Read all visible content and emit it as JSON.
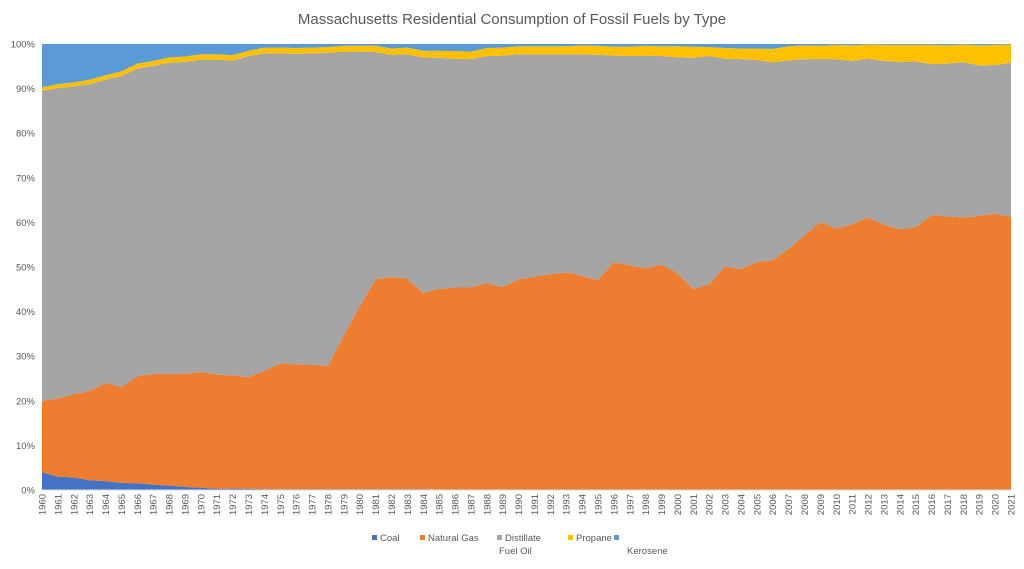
{
  "chart_data": {
    "type": "area",
    "stacked": "percent",
    "title": "Massachusetts Residential Consumption of Fossil Fuels by Type",
    "xlabel": "",
    "ylabel": "",
    "ylim": [
      0,
      100
    ],
    "y_ticks": [
      "0%",
      "10%",
      "20%",
      "30%",
      "40%",
      "50%",
      "60%",
      "70%",
      "80%",
      "90%",
      "100%"
    ],
    "grid": false,
    "legend": "bottom",
    "x": [
      1960,
      1961,
      1962,
      1963,
      1964,
      1965,
      1966,
      1967,
      1968,
      1969,
      1970,
      1971,
      1972,
      1973,
      1974,
      1975,
      1976,
      1977,
      1978,
      1979,
      1980,
      1981,
      1982,
      1983,
      1984,
      1985,
      1986,
      1987,
      1988,
      1989,
      1990,
      1991,
      1992,
      1993,
      1994,
      1995,
      1996,
      1997,
      1998,
      1999,
      2000,
      2001,
      2002,
      2003,
      2004,
      2005,
      2006,
      2007,
      2008,
      2009,
      2010,
      2011,
      2012,
      2013,
      2014,
      2015,
      2016,
      2017,
      2018,
      2019,
      2020,
      2021
    ],
    "series": [
      {
        "name": "Coal",
        "color": "#4472c4",
        "values": [
          4,
          3,
          2.8,
          2.2,
          2,
          1.6,
          1.5,
          1.2,
          1,
          0.7,
          0.5,
          0.3,
          0.3,
          0.3,
          0.2,
          0.2,
          0.2,
          0.2,
          0.2,
          0.2,
          0.2,
          0.2,
          0.2,
          0.2,
          0.2,
          0.1,
          0.1,
          0.1,
          0.1,
          0.1,
          0.1,
          0.1,
          0.1,
          0.1,
          0.1,
          0.1,
          0.1,
          0.1,
          0.1,
          0.1,
          0.1,
          0.1,
          0.1,
          0.1,
          0.1,
          0.1,
          0.1,
          0.1,
          0.1,
          0.1,
          0.1,
          0.1,
          0.1,
          0.1,
          0.1,
          0.1,
          0.1,
          0.1,
          0.1,
          0.1,
          0.1,
          0.1
        ]
      },
      {
        "name": "Natural Gas",
        "color": "#ed7d31",
        "values": [
          16,
          17.5,
          18.7,
          20,
          22,
          21.5,
          24,
          24.8,
          25,
          25.3,
          26,
          25.6,
          25.4,
          25,
          26.5,
          28.2,
          28,
          27.9,
          27.6,
          34.5,
          41,
          47,
          47.5,
          47.2,
          44,
          45,
          45.3,
          45.3,
          46.3,
          45.4,
          47.1,
          47.7,
          48.3,
          48.7,
          47.9,
          47,
          51,
          50.3,
          49.6,
          50.5,
          48.5,
          45,
          46,
          50,
          49.5,
          51,
          51.4,
          54,
          57,
          60,
          58.5,
          59.5,
          61,
          59.4,
          58.4,
          58.8,
          61.5,
          61.3,
          61,
          61.4,
          61.8,
          61.2
        ]
      },
      {
        "name": "Distillate Fuel Oil",
        "color": "#a5a5a5",
        "values": [
          69.5,
          69.6,
          69,
          68.8,
          68,
          69.7,
          69,
          69.1,
          69.8,
          70,
          70,
          70.6,
          70.6,
          72,
          71.2,
          69.5,
          69.6,
          69.8,
          70.2,
          63.6,
          57.1,
          51,
          49.8,
          50.3,
          52.8,
          51.8,
          51.3,
          51.2,
          50.9,
          51.9,
          50.5,
          49.9,
          49.3,
          48.9,
          49.7,
          50.5,
          46.3,
          46.9,
          47.7,
          46.7,
          48.4,
          51.8,
          51.2,
          46.6,
          47.1,
          45.3,
          44.4,
          42.2,
          39.5,
          36.5,
          38,
          36.6,
          35.6,
          36.7,
          37.5,
          37.2,
          33.9,
          34.3,
          34.8,
          33.7,
          33.4,
          34.5
        ]
      },
      {
        "name": "Propane",
        "color": "#ffc000",
        "values": [
          0.8,
          0.9,
          0.9,
          1,
          1,
          1.1,
          1.1,
          1.1,
          1.2,
          1.2,
          1.2,
          1.2,
          1.2,
          1.2,
          1.3,
          1.3,
          1.3,
          1.3,
          1.3,
          1.3,
          1.3,
          1.4,
          1.4,
          1.5,
          1.5,
          1.6,
          1.7,
          1.7,
          1.8,
          1.8,
          1.8,
          1.8,
          1.8,
          1.8,
          2,
          2,
          2,
          2.1,
          2.2,
          2.2,
          2.5,
          2.5,
          2,
          2.4,
          2.4,
          2.6,
          3,
          3.2,
          3.1,
          3,
          3.2,
          3.5,
          3.2,
          3.6,
          3.8,
          3.7,
          4.3,
          4.1,
          4,
          4.5,
          4.5,
          4.1
        ]
      },
      {
        "name": "Kerosene",
        "color": "#5b9bd5",
        "values": [
          9.7,
          9,
          8.6,
          8,
          7,
          6.1,
          4.4,
          3.8,
          3,
          2.8,
          2.3,
          2.3,
          2.5,
          1.5,
          0.8,
          0.8,
          0.9,
          0.8,
          0.7,
          0.4,
          0.4,
          0.4,
          1,
          0.8,
          1.5,
          1.5,
          1.6,
          1.7,
          0.9,
          0.8,
          0.5,
          0.5,
          0.5,
          0.5,
          0.3,
          0.4,
          0.6,
          0.6,
          0.4,
          0.5,
          0.5,
          0.6,
          0.7,
          0.9,
          1,
          1,
          1.1,
          0.5,
          0.3,
          0.4,
          0.2,
          0.3,
          0.1,
          0.2,
          0.2,
          0.2,
          0.2,
          0.3,
          0.1,
          0.3,
          0.2,
          0.1
        ]
      }
    ],
    "legend_entries": [
      "Coal",
      "Natural Gas",
      "Distillate Fuel Oil",
      "Propane",
      "Kerosene"
    ]
  }
}
